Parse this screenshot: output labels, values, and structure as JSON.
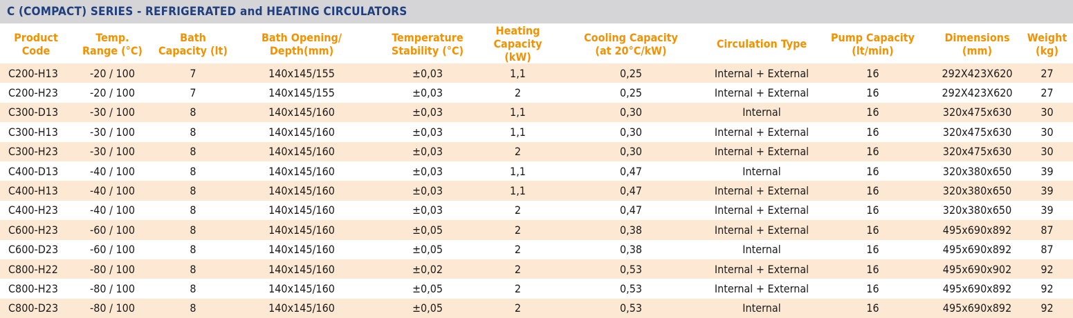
{
  "title": "C (COMPACT) SERIES - REFRIGERATED and HEATING CIRCULATORS",
  "headers": [
    {
      "line1": "Product",
      "line2": "Code"
    },
    {
      "line1": "Temp.",
      "line2": "Range (°C)"
    },
    {
      "line1": "Bath",
      "line2": "Capacity (lt)"
    },
    {
      "line1": "Bath Opening/",
      "line2": "Depth(mm)"
    },
    {
      "line1": "Temperature",
      "line2": "Stability (°C)"
    },
    {
      "line1": "Heating",
      "line2": "Capacity (kW)"
    },
    {
      "line1": "Cooling Capacity",
      "line2": "(at 20°C/kW)"
    },
    {
      "line1": "Circulation Type",
      "line2": ""
    },
    {
      "line1": "Pump  Capacity",
      "line2": "(lt/min)"
    },
    {
      "line1": "Dimensions",
      "line2": "(mm)"
    },
    {
      "line1": "Weight",
      "line2": "(kg)"
    }
  ],
  "rows": [
    [
      "C200-H13",
      "-20 / 100",
      "7",
      "140x145/155",
      "±0,03",
      "1,1",
      "0,25",
      "Internal + External",
      "16",
      "292X423X620",
      "27"
    ],
    [
      "C200-H23",
      "-20 / 100",
      "7",
      "140x145/155",
      "±0,03",
      "2",
      "0,25",
      "Internal + External",
      "16",
      "292X423X620",
      "27"
    ],
    [
      "C300-D13",
      "-30 / 100",
      "8",
      "140x145/160",
      "±0,03",
      "1,1",
      "0,30",
      "Internal",
      "16",
      "320x475x630",
      "30"
    ],
    [
      "C300-H13",
      "-30 / 100",
      "8",
      "140x145/160",
      "±0,03",
      "1,1",
      "0,30",
      "Internal + External",
      "16",
      "320x475x630",
      "30"
    ],
    [
      "C300-H23",
      "-30 / 100",
      "8",
      "140x145/160",
      "±0,03",
      "2",
      "0,30",
      "Internal + External",
      "16",
      "320x475x630",
      "30"
    ],
    [
      "C400-D13",
      "-40 / 100",
      "8",
      "140x145/160",
      "±0,03",
      "1,1",
      "0,47",
      "Internal",
      "16",
      "320x380x650",
      "39"
    ],
    [
      "C400-H13",
      "-40 / 100",
      "8",
      "140x145/160",
      "±0,03",
      "1,1",
      "0,47",
      "Internal + External",
      "16",
      "320x380x650",
      "39"
    ],
    [
      "C400-H23",
      "-40 / 100",
      "8",
      "140x145/160",
      "±0,03",
      "2",
      "0,47",
      "Internal + External",
      "16",
      "320x380x650",
      "39"
    ],
    [
      "C600-H23",
      "-60 / 100",
      "8",
      "140x145/160",
      "±0,05",
      "2",
      "0,38",
      "Internal + External",
      "16",
      "495x690x892",
      "87"
    ],
    [
      "C600-D23",
      "-60 / 100",
      "8",
      "140x145/160",
      "±0,05",
      "2",
      "0,38",
      "Internal",
      "16",
      "495x690x892",
      "87"
    ],
    [
      "C800-H22",
      "-80 / 100",
      "8",
      "140x145/160",
      "±0,02",
      "2",
      "0,53",
      "Internal + External",
      "16",
      "495x690x902",
      "92"
    ],
    [
      "C800-H23",
      "-80 / 100",
      "8",
      "140x145/160",
      "±0,05",
      "2",
      "0,53",
      "Internal + External",
      "16",
      "495x690x892",
      "92"
    ],
    [
      "C800-D23",
      "-80 / 100",
      "8",
      "140x145/160",
      "±0,05",
      "2",
      "0,53",
      "Internal",
      "16",
      "495x690x892",
      "92"
    ]
  ],
  "colors": {
    "title_bar_bg": "#d5d5d7",
    "title_text": "#1f3f7f",
    "header_text": "#f39200",
    "row_highlight": "#fde9d3",
    "row_plain": "#ffffff",
    "cell_text": "#1a1a1a"
  }
}
